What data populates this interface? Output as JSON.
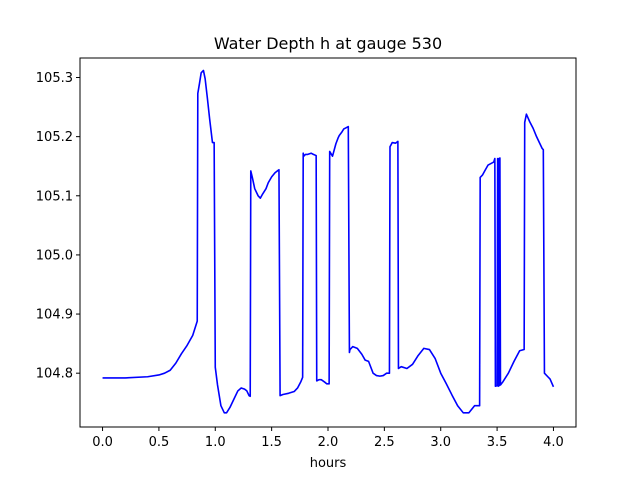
{
  "chart_data": {
    "type": "line",
    "title": "Water Depth h at gauge 530",
    "xlabel": "hours",
    "ylabel": "",
    "xlim": [
      -0.2,
      4.2
    ],
    "ylim": [
      104.709,
      105.333
    ],
    "xticks": [
      0.0,
      0.5,
      1.0,
      1.5,
      2.0,
      2.5,
      3.0,
      3.5,
      4.0
    ],
    "xtick_labels": [
      "0.0",
      "0.5",
      "1.0",
      "1.5",
      "2.0",
      "2.5",
      "3.0",
      "3.5",
      "4.0"
    ],
    "yticks": [
      104.8,
      104.9,
      105.0,
      105.1,
      105.2,
      105.3
    ],
    "ytick_labels": [
      "104.8",
      "104.9",
      "105.0",
      "105.1",
      "105.2",
      "105.3"
    ],
    "grid": false,
    "series": [
      {
        "color": "#0000ff",
        "x": [
          0.0,
          0.2,
          0.4,
          0.5,
          0.55,
          0.6,
          0.65,
          0.7,
          0.75,
          0.8,
          0.84,
          0.845,
          0.86,
          0.875,
          0.895,
          0.91,
          0.93,
          0.95,
          0.975,
          0.99,
          1.0,
          1.02,
          1.05,
          1.08,
          1.1,
          1.13,
          1.17,
          1.2,
          1.23,
          1.26,
          1.28,
          1.3,
          1.31,
          1.315,
          1.33,
          1.35,
          1.38,
          1.4,
          1.42,
          1.45,
          1.47,
          1.5,
          1.53,
          1.55,
          1.565,
          1.575,
          1.6,
          1.65,
          1.7,
          1.73,
          1.76,
          1.775,
          1.78,
          1.785,
          1.8,
          1.82,
          1.85,
          1.87,
          1.895,
          1.9,
          1.92,
          1.94,
          1.97,
          1.99,
          2.01,
          2.015,
          2.04,
          2.07,
          2.09,
          2.1,
          2.12,
          2.14,
          2.16,
          2.18,
          2.19,
          2.195,
          2.22,
          2.26,
          2.3,
          2.33,
          2.36,
          2.4,
          2.43,
          2.46,
          2.49,
          2.52,
          2.545,
          2.55,
          2.57,
          2.6,
          2.62,
          2.625,
          2.65,
          2.7,
          2.75,
          2.8,
          2.85,
          2.9,
          2.95,
          3.0,
          3.05,
          3.1,
          3.15,
          3.2,
          3.25,
          3.3,
          3.345,
          3.35,
          3.37,
          3.39,
          3.42,
          3.47,
          3.48,
          3.485,
          3.5,
          3.505,
          3.51,
          3.515,
          3.52,
          3.525,
          3.53,
          3.55,
          3.6,
          3.65,
          3.7,
          3.74,
          3.745,
          3.76,
          3.79,
          3.82,
          3.85,
          3.88,
          3.9,
          3.91,
          3.92,
          3.95,
          3.97,
          4.0
        ],
        "values": [
          104.792,
          104.792,
          104.794,
          104.797,
          104.8,
          104.805,
          104.817,
          104.833,
          104.847,
          104.864,
          104.888,
          105.273,
          105.29,
          105.308,
          105.312,
          105.298,
          105.265,
          105.23,
          105.19,
          105.19,
          104.81,
          104.78,
          104.745,
          104.733,
          104.733,
          104.742,
          104.758,
          104.77,
          104.775,
          104.773,
          104.77,
          104.762,
          104.761,
          105.142,
          105.13,
          105.112,
          105.1,
          105.096,
          105.103,
          105.112,
          105.122,
          105.132,
          105.139,
          105.142,
          105.144,
          104.762,
          104.764,
          104.766,
          104.769,
          104.775,
          104.786,
          104.793,
          105.172,
          105.167,
          105.17,
          105.17,
          105.172,
          105.17,
          105.168,
          104.787,
          104.789,
          104.789,
          104.785,
          104.782,
          104.782,
          105.175,
          105.167,
          105.188,
          105.198,
          105.202,
          105.207,
          105.213,
          105.215,
          105.217,
          104.835,
          104.84,
          104.845,
          104.842,
          104.832,
          104.822,
          104.82,
          104.8,
          104.796,
          104.795,
          104.796,
          104.8,
          104.8,
          105.183,
          105.19,
          105.189,
          105.192,
          104.808,
          104.811,
          104.808,
          104.815,
          104.83,
          104.842,
          104.84,
          104.825,
          104.8,
          104.782,
          104.763,
          104.745,
          104.733,
          104.733,
          104.745,
          104.745,
          105.131,
          105.135,
          105.142,
          105.152,
          105.157,
          105.163,
          104.778,
          104.779,
          105.163,
          104.778,
          105.163,
          104.779,
          105.164,
          104.78,
          104.785,
          104.8,
          104.82,
          104.838,
          104.84,
          105.224,
          105.238,
          105.225,
          105.214,
          105.2,
          105.188,
          105.18,
          105.178,
          104.8,
          104.794,
          104.79,
          104.777
        ]
      }
    ]
  }
}
